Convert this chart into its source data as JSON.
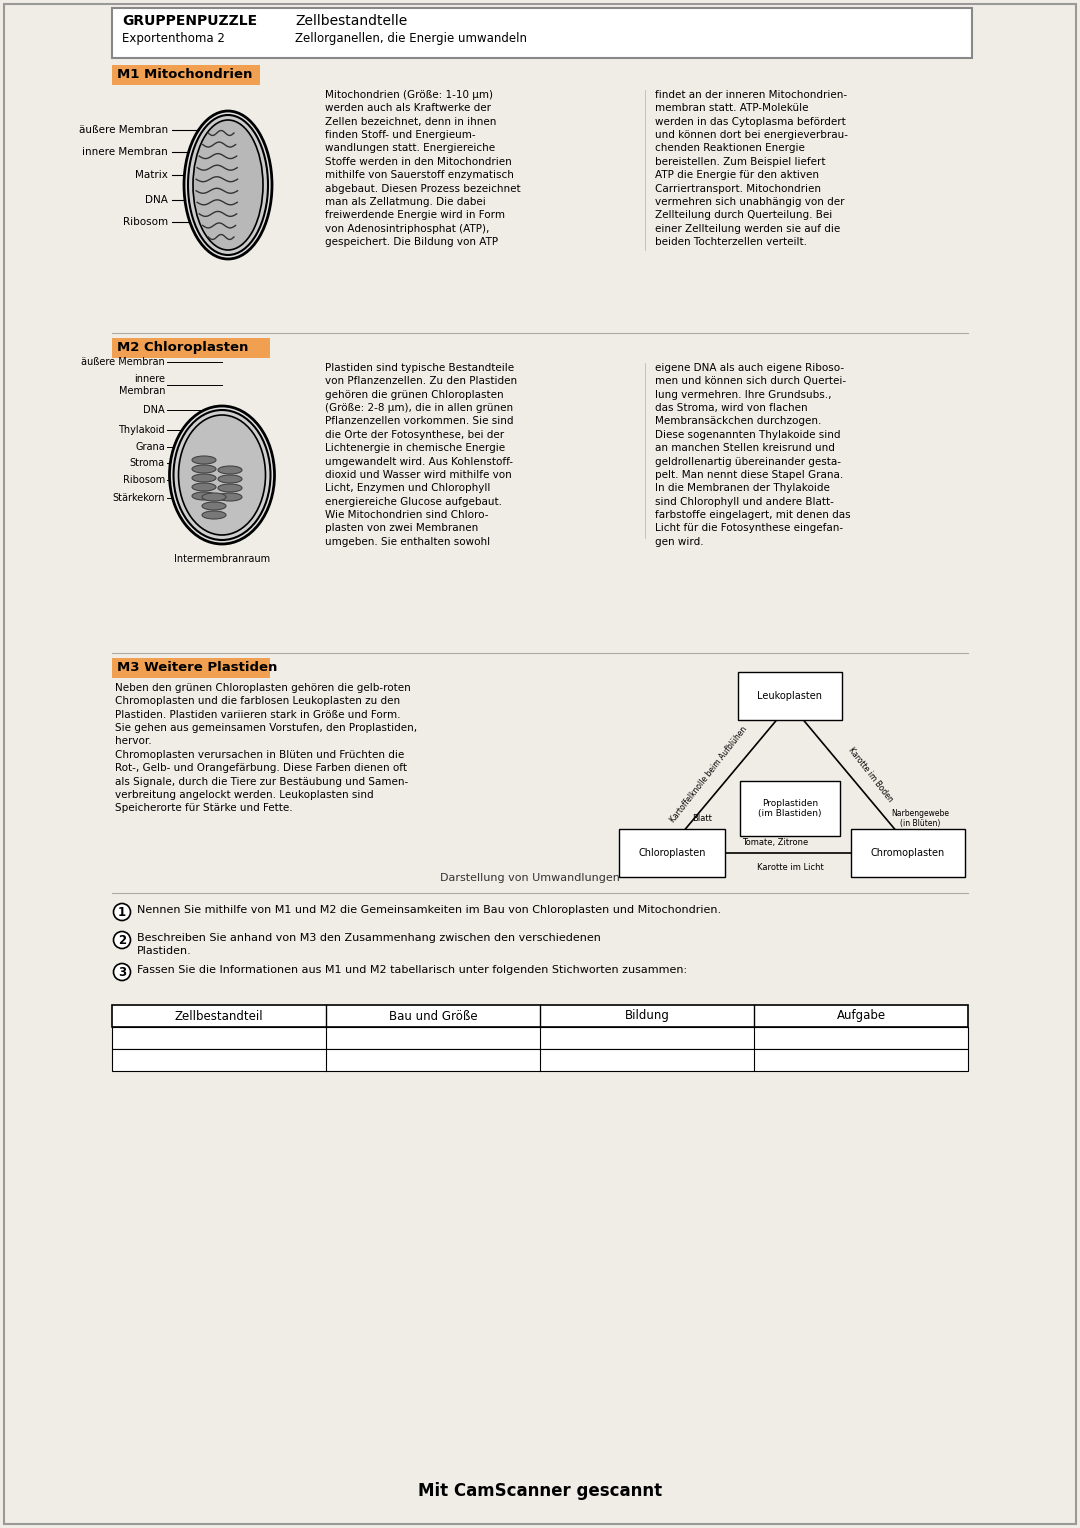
{
  "bg_color": "#f0ece6",
  "orange_highlight": "#f0a050",
  "title_left": "GRUPPENPUZZLE",
  "title_right": "Zellbestandtelle",
  "subtitle_left": "Exportenthoma 2",
  "subtitle_right": "Zellorganellen, die Energie umwandeln",
  "m1_label": "M1 Mitochondrien",
  "m1_labels_left": [
    "äußere Membran",
    "innere Membran",
    "Matrix",
    "DNA",
    "Ribosom"
  ],
  "m1_text1": "Mitochondrien (Größe: 1-10 µm)\nwerden auch als Kraftwerke der\nZellen bezeichnet, denn in ihnen\nfinden Stoff- und Energieum-\nwandlungen statt. Energiereiche\nStoffe werden in den Mitochondrien\nmithilfe von Sauerstoff enzymatisch\nabgebaut. Diesen Prozess bezeichnet\nman als Zellatmung. Die dabei\nfreiwerdende Energie wird in Form\nvon Adenosintriphosphat (ATP),\ngespeichert. Die Bildung von ATP",
  "m1_text2": "findet an der inneren Mitochondrien-\nmembran statt. ATP-Moleküle\nwerden in das Cytoplasma befördert\nund können dort bei energieverbrau-\nchenden Reaktionen Energie\nbereistellen. Zum Beispiel liefert\nATP die Energie für den aktiven\nCarriertransport. Mitochondrien\nvermehren sich unabhängig von der\nZellteilung durch Querteilung. Bei\neiner Zellteilung werden sie auf die\nbeiden Tochterzellen verteilt.",
  "m2_label": "M2 Chloroplasten",
  "m2_labels_left": [
    "äußere Membran",
    "innere\nMembran",
    "DNA",
    "Thylakoid",
    "Grana",
    "Stroma",
    "Ribosom",
    "Stärkekorn"
  ],
  "m2_label_bottom": "Intermembranraum",
  "m2_text1": "Plastiden sind typische Bestandteile\nvon Pflanzenzellen. Zu den Plastiden\ngehören die grünen Chloroplasten\n(Größe: 2-8 µm), die in allen grünen\nPflanzenzellen vorkommen. Sie sind\ndie Orte der Fotosynthese, bei der\nLichtenergie in chemische Energie\numgewandelt wird. Aus Kohlenstoff-\ndioxid und Wasser wird mithilfe von\nLicht, Enzymen und Chlorophyll\nenergiereiche Glucose aufgebaut.\nWie Mitochondrien sind Chloro-\nplasten von zwei Membranen\numgeben. Sie enthalten sowohl",
  "m2_text2": "eigene DNA als auch eigene Riboso-\nmen und können sich durch Quertei-\nlung vermehren. Ihre Grundsubs.,\ndas Stroma, wird von flachen\nMembransäckchen durchzogen.\nDiese sogenannten Thylakoide sind\nan manchen Stellen kreisrund und\ngeldrollenartig übereinander gesta-\npelt. Man nennt diese Stapel Grana.\nIn die Membranen der Thylakoide\nsind Chlorophyll und andere Blatt-\nfarbstoffe eingelagert, mit denen das\nLicht für die Fotosynthese eingefan-\ngen wird.",
  "m3_label": "M3 Weitere Plastiden",
  "m3_text": "Neben den grünen Chloroplasten gehören die gelb-roten\nChromoplasten und die farblosen Leukoplasten zu den\nPlastiden. Plastiden variieren stark in Größe und Form.\nSie gehen aus gemeinsamen Vorstufen, den Proplastiden,\nhervor.\nChromoplasten verursachen in Blüten und Früchten die\nRot-, Gelb- und Orangefärbung. Diese Farben dienen oft\nals Signale, durch die Tiere zur Bestäubung und Samen-\nverbreitung angelockt werden. Leukoplasten sind\nSpeicherorte für Stärke und Fette.",
  "q1": "Nennen Sie mithilfe von M1 und M2 die Gemeinsamkeiten im Bau von Chloroplasten und Mitochondrien.",
  "q2": "Beschreiben Sie anhand von M3 den Zusammenhang zwischen den verschiedenen\nPlastiden.",
  "q3": "Fassen Sie die Informationen aus M1 und M2 tabellarisch unter folgenden Stichworten zusammen:",
  "table_headers": [
    "Zellbestandteil",
    "Bau und Größe",
    "Bildung",
    "Aufgabe"
  ],
  "footer": "Mit CamScanner gescannt",
  "handwritten": "Darstellung von Umwandlungen"
}
